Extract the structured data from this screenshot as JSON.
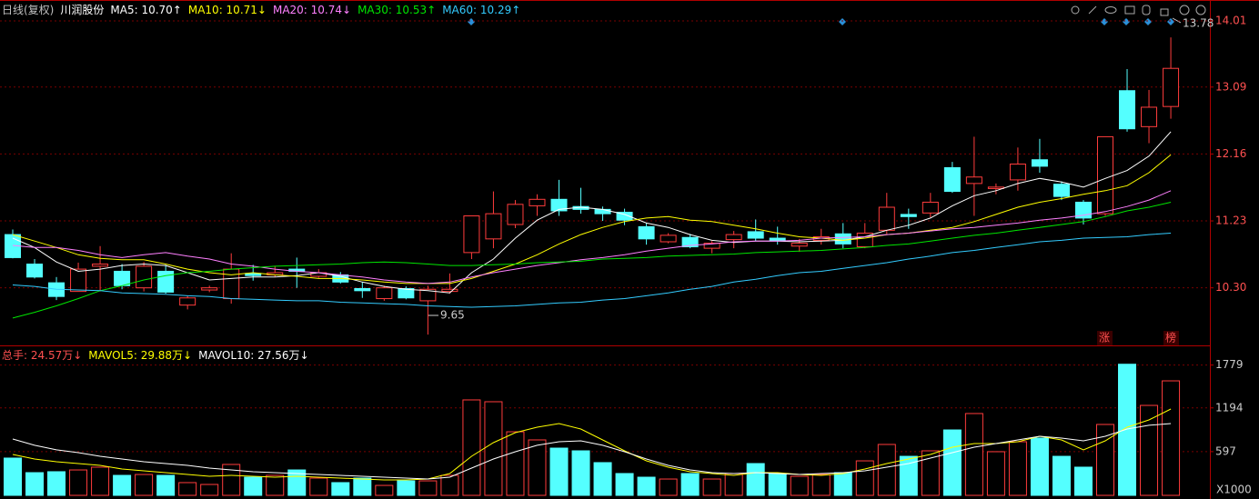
{
  "chart_data": [
    {
      "type": "candlestick",
      "title": "日线(复权)",
      "subtitle": "川润股份",
      "open": [
        11.04,
        10.63,
        10.37,
        10.25,
        10.6,
        10.53,
        10.3,
        10.53,
        10.06,
        10.27,
        10.15,
        10.5,
        10.48,
        10.56,
        10.46,
        10.48,
        10.29,
        10.15,
        10.29,
        10.12,
        10.25,
        10.79,
        10.98,
        11.18,
        11.44,
        11.53,
        11.43,
        11.39,
        11.35,
        11.15,
        10.94,
        11.0,
        10.85,
        10.97,
        11.08,
        10.99,
        10.88,
        10.96,
        11.05,
        10.87,
        11.1,
        11.32,
        11.34,
        11.97,
        11.75,
        11.68,
        11.8,
        12.08,
        11.74,
        11.49,
        11.33,
        13.04,
        12.54,
        12.82
      ],
      "high": [
        11.11,
        10.7,
        10.45,
        10.65,
        10.88,
        10.63,
        10.66,
        10.62,
        10.19,
        10.33,
        10.78,
        10.62,
        10.6,
        10.72,
        10.56,
        10.52,
        10.38,
        10.33,
        10.32,
        10.33,
        10.5,
        11.3,
        11.64,
        11.52,
        11.6,
        11.8,
        11.69,
        11.43,
        11.4,
        11.2,
        11.06,
        11.05,
        10.95,
        11.09,
        11.25,
        11.15,
        10.98,
        11.12,
        11.2,
        11.2,
        11.62,
        11.4,
        11.62,
        12.05,
        12.4,
        11.75,
        12.25,
        12.37,
        11.78,
        11.52,
        12.4,
        13.34,
        13.05,
        13.78
      ],
      "low": [
        10.71,
        10.43,
        10.13,
        10.25,
        10.25,
        10.28,
        10.25,
        10.22,
        10.0,
        10.24,
        10.08,
        10.4,
        10.45,
        10.3,
        10.44,
        10.36,
        10.16,
        10.12,
        10.14,
        9.65,
        10.22,
        10.7,
        10.85,
        11.13,
        11.3,
        11.3,
        11.33,
        11.23,
        11.17,
        10.9,
        10.92,
        10.85,
        10.78,
        10.85,
        10.95,
        10.9,
        10.8,
        10.9,
        10.85,
        10.85,
        11.05,
        11.12,
        11.28,
        11.62,
        11.3,
        11.6,
        11.65,
        11.9,
        11.52,
        11.18,
        11.3,
        12.47,
        12.31,
        12.65
      ],
      "close": [
        10.72,
        10.45,
        10.18,
        10.56,
        10.63,
        10.33,
        10.6,
        10.24,
        10.16,
        10.3,
        10.56,
        10.47,
        10.51,
        10.53,
        10.51,
        10.38,
        10.26,
        10.3,
        10.16,
        10.28,
        10.28,
        11.3,
        11.33,
        11.46,
        11.53,
        11.37,
        11.39,
        11.33,
        11.24,
        10.98,
        11.03,
        10.87,
        10.92,
        11.04,
        10.99,
        10.96,
        10.92,
        11.01,
        10.91,
        11.06,
        11.42,
        11.29,
        11.49,
        11.64,
        11.84,
        11.7,
        12.02,
        11.99,
        11.57,
        11.27,
        12.4,
        12.51,
        12.81,
        13.35
      ],
      "up_color": "#ff3c3c",
      "down_color": "#54ffff",
      "ylim": [
        9.5,
        14.3
      ],
      "yticks": [
        14.01,
        13.09,
        12.16,
        11.23,
        {
          "value": 10.3,
          "label": "10.30"
        }
      ],
      "grid": true,
      "series": [
        {
          "name": "MA5: 10.70↑",
          "color": "#ffffff",
          "values": [
            10.99,
            10.86,
            10.66,
            10.53,
            10.56,
            10.61,
            10.63,
            10.61,
            10.51,
            10.41,
            10.43,
            10.45,
            10.45,
            10.47,
            10.51,
            10.46,
            10.38,
            10.32,
            10.28,
            10.26,
            10.23,
            10.51,
            10.7,
            10.99,
            11.24,
            11.39,
            11.42,
            11.39,
            11.32,
            11.2,
            11.14,
            11.04,
            10.96,
            10.93,
            10.95,
            10.95,
            10.94,
            10.95,
            10.96,
            11.01,
            11.1,
            11.17,
            11.27,
            11.44,
            11.58,
            11.65,
            11.75,
            11.82,
            11.77,
            11.7,
            11.82,
            11.93,
            12.13,
            12.47
          ]
        },
        {
          "name": "MA10: 10.71↓",
          "color": "#ffff00",
          "values": [
            11.04,
            10.95,
            10.86,
            10.76,
            10.71,
            10.69,
            10.69,
            10.63,
            10.56,
            10.51,
            10.48,
            10.51,
            10.48,
            10.46,
            10.43,
            10.43,
            10.41,
            10.38,
            10.36,
            10.36,
            10.36,
            10.43,
            10.53,
            10.63,
            10.76,
            10.91,
            11.04,
            11.14,
            11.22,
            11.27,
            11.29,
            11.24,
            11.22,
            11.17,
            11.12,
            11.06,
            11.01,
            10.99,
            10.96,
            10.99,
            11.04,
            11.06,
            11.1,
            11.14,
            11.22,
            11.32,
            11.42,
            11.49,
            11.54,
            11.6,
            11.65,
            11.72,
            11.9,
            12.15
          ]
        },
        {
          "name": "MA20: 10.74↓",
          "color": "#ff80ff",
          "values": [
            10.89,
            10.86,
            10.86,
            10.82,
            10.76,
            10.72,
            10.76,
            10.79,
            10.74,
            10.7,
            10.63,
            10.6,
            10.56,
            10.53,
            10.51,
            10.48,
            10.45,
            10.41,
            10.38,
            10.36,
            10.38,
            10.45,
            10.51,
            10.56,
            10.61,
            10.65,
            10.69,
            10.72,
            10.76,
            10.81,
            10.85,
            10.89,
            10.91,
            10.94,
            10.95,
            10.95,
            10.96,
            10.99,
            11.0,
            11.01,
            11.04,
            11.06,
            11.09,
            11.12,
            11.14,
            11.17,
            11.2,
            11.24,
            11.27,
            11.31,
            11.36,
            11.43,
            11.52,
            11.65
          ]
        },
        {
          "name": "MA30: 10.53↑",
          "color": "#00e600",
          "values": [
            9.88,
            9.96,
            10.05,
            10.15,
            10.26,
            10.33,
            10.41,
            10.47,
            10.51,
            10.53,
            10.56,
            10.58,
            10.6,
            10.61,
            10.62,
            10.63,
            10.65,
            10.66,
            10.65,
            10.63,
            10.61,
            10.61,
            10.62,
            10.63,
            10.65,
            10.66,
            10.67,
            10.7,
            10.71,
            10.72,
            10.74,
            10.75,
            10.76,
            10.77,
            10.79,
            10.8,
            10.81,
            10.82,
            10.84,
            10.86,
            10.89,
            10.91,
            10.95,
            10.99,
            11.03,
            11.06,
            11.1,
            11.14,
            11.18,
            11.22,
            11.29,
            11.37,
            11.42,
            11.49
          ]
        },
        {
          "name": "MA60: 10.29↑",
          "color": "#33ccff",
          "values": [
            10.34,
            10.32,
            10.28,
            10.27,
            10.26,
            10.23,
            10.22,
            10.21,
            10.19,
            10.18,
            10.15,
            10.14,
            10.13,
            10.12,
            10.12,
            10.1,
            10.09,
            10.08,
            10.07,
            10.05,
            10.04,
            10.03,
            10.04,
            10.05,
            10.07,
            10.09,
            10.1,
            10.13,
            10.15,
            10.19,
            10.23,
            10.28,
            10.32,
            10.38,
            10.42,
            10.47,
            10.51,
            10.53,
            10.57,
            10.61,
            10.65,
            10.7,
            10.74,
            10.79,
            10.82,
            10.86,
            10.9,
            10.94,
            10.96,
            10.99,
            11.0,
            11.01,
            11.04,
            11.06
          ]
        }
      ],
      "annotations": [
        "13.78",
        "9.65"
      ],
      "markers": [
        "涨",
        "榜"
      ]
    },
    {
      "type": "bar",
      "title": "总手: 24.57万↓",
      "values": [
        509,
        310,
        323,
        347,
        385,
        273,
        285,
        273,
        174,
        149,
        422,
        248,
        273,
        347,
        236,
        174,
        236,
        136,
        198,
        198,
        273,
        1303,
        1278,
        868,
        757,
        645,
        608,
        447,
        298,
        248,
        223,
        298,
        223,
        298,
        434,
        298,
        260,
        285,
        310,
        471,
        695,
        533,
        608,
        893,
        1117,
        596,
        732,
        782,
        533,
        385,
        968,
        1790,
        1228,
        1563
      ],
      "ylim": [
        0,
        1861
      ],
      "yticks": [
        1779,
        1194,
        597
      ],
      "ylabel": "X1000",
      "grid": true,
      "series": [
        {
          "name": "MAVOL5: 29.88万↓",
          "color": "#ffff00",
          "values": [
            558,
            496,
            459,
            434,
            410,
            360,
            335,
            310,
            285,
            261,
            273,
            261,
            248,
            261,
            248,
            236,
            223,
            211,
            211,
            223,
            298,
            534,
            720,
            856,
            931,
            980,
            906,
            757,
            608,
            472,
            385,
            323,
            298,
            273,
            310,
            310,
            285,
            273,
            298,
            360,
            434,
            496,
            558,
            658,
            707,
            707,
            732,
            807,
            757,
            621,
            745,
            931,
            1030,
            1179
          ]
        },
        {
          "name": "MAVOL10: 27.56万↓",
          "color": "#ffffff",
          "values": [
            769,
            683,
            621,
            583,
            534,
            496,
            459,
            434,
            410,
            372,
            347,
            323,
            310,
            298,
            285,
            273,
            261,
            248,
            236,
            223,
            248,
            372,
            496,
            596,
            683,
            732,
            745,
            683,
            596,
            496,
            410,
            347,
            310,
            298,
            310,
            298,
            285,
            298,
            310,
            335,
            385,
            434,
            509,
            583,
            658,
            707,
            757,
            807,
            782,
            745,
            807,
            906,
            956,
            980
          ]
        }
      ]
    }
  ]
}
